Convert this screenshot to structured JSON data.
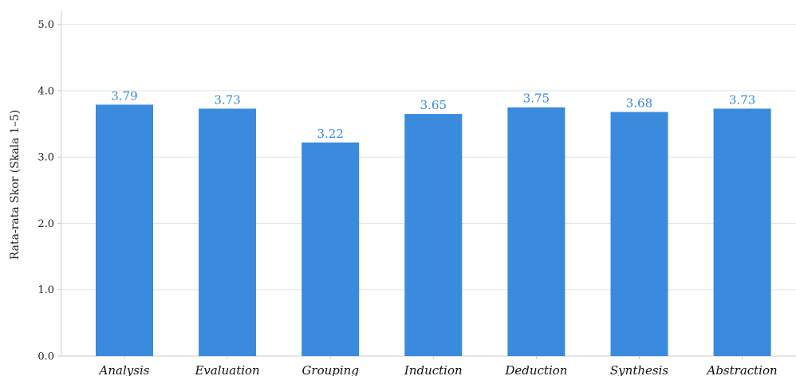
{
  "chart_data": {
    "type": "bar",
    "categories": [
      "Analysis",
      "Evaluation",
      "Grouping",
      "Induction",
      "Deduction",
      "Synthesis",
      "Abstraction"
    ],
    "values": [
      3.79,
      3.73,
      3.22,
      3.65,
      3.75,
      3.68,
      3.73
    ],
    "value_labels": [
      "3.79",
      "3.73",
      "3.22",
      "3.65",
      "3.75",
      "3.68",
      "3.73"
    ],
    "ylabel": "Rata-rata Skor (Skala 1–5)",
    "xlabel": "",
    "title": "",
    "ylim": [
      0,
      5.2
    ],
    "yticks": [
      0,
      1,
      2,
      3,
      4,
      5
    ],
    "ytick_labels": [
      "0.0",
      "1.0",
      "2.0",
      "3.0",
      "4.0",
      "5.0"
    ],
    "grid": "horizontal",
    "bar_color": "#3a8ade",
    "label_color": "#3a8ade"
  }
}
